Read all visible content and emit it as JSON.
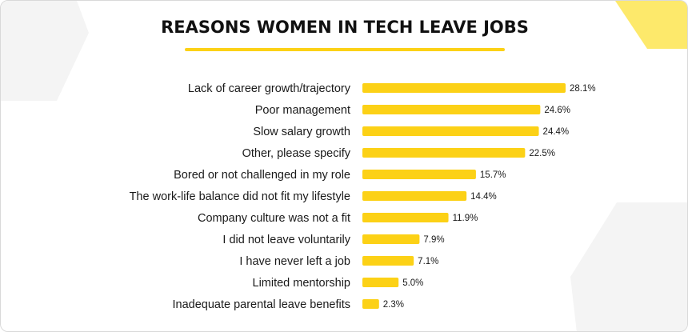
{
  "colors": {
    "bar": "#fcd116",
    "deco": "#f4f4f4",
    "accent_shape": "#fde96b"
  },
  "chart_data": {
    "type": "bar",
    "orientation": "horizontal",
    "title": "REASONS WOMEN IN TECH LEAVE JOBS",
    "categories": [
      "Lack of career growth/trajectory",
      "Poor management",
      "Slow salary growth",
      "Other, please specify",
      "Bored or not challenged in my role",
      "The work-life balance did not fit my lifestyle",
      "Company culture was not a fit",
      "I did not leave voluntarily",
      "I have never left a job",
      "Limited mentorship",
      "Inadequate parental leave benefits"
    ],
    "values": [
      28.1,
      24.6,
      24.4,
      22.5,
      15.7,
      14.4,
      11.9,
      7.9,
      7.1,
      5.0,
      2.3
    ],
    "value_labels": [
      "28.1%",
      "24.6%",
      "24.4%",
      "22.5%",
      "15.7%",
      "14.4%",
      "11.9%",
      "7.9%",
      "7.1%",
      "5.0%",
      "2.3%"
    ],
    "xlim": [
      0,
      30
    ],
    "grid": false,
    "legend": "none"
  }
}
